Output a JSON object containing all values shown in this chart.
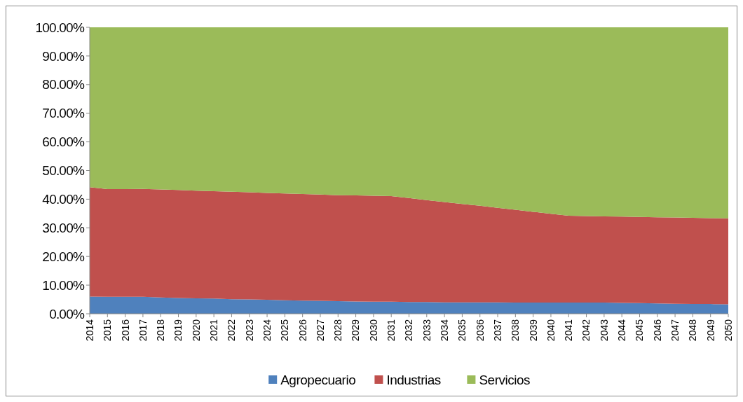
{
  "chart_data": {
    "type": "area",
    "stacked": true,
    "legend": "bottom",
    "categories": [
      "2014",
      "2015",
      "2016",
      "2017",
      "2018",
      "2019",
      "2020",
      "2021",
      "2022",
      "2023",
      "2024",
      "2025",
      "2026",
      "2027",
      "2028",
      "2029",
      "2030",
      "2031",
      "2032",
      "2033",
      "2034",
      "2035",
      "2036",
      "2037",
      "2038",
      "2039",
      "2040",
      "2041",
      "2042",
      "2043",
      "2044",
      "2045",
      "2046",
      "2047",
      "2048",
      "2049",
      "2050"
    ],
    "ylim": [
      0,
      100
    ],
    "yticks": [
      {
        "value": 0,
        "label": "0.00%"
      },
      {
        "value": 10,
        "label": "10.00%"
      },
      {
        "value": 20,
        "label": "20.00%"
      },
      {
        "value": 30,
        "label": "30.00%"
      },
      {
        "value": 40,
        "label": "40.00%"
      },
      {
        "value": 50,
        "label": "50.00%"
      },
      {
        "value": 60,
        "label": "60.00%"
      },
      {
        "value": 70,
        "label": "70.00%"
      },
      {
        "value": 80,
        "label": "80.00%"
      },
      {
        "value": 90,
        "label": "90.00%"
      },
      {
        "value": 100,
        "label": "100.00%"
      }
    ],
    "series": [
      {
        "name": "Agropecuario",
        "color": "#4f81bd",
        "values": [
          6.0,
          5.9,
          5.9,
          5.9,
          5.7,
          5.5,
          5.4,
          5.3,
          5.1,
          5.0,
          4.9,
          4.7,
          4.6,
          4.5,
          4.4,
          4.3,
          4.2,
          4.2,
          4.1,
          4.1,
          4.0,
          4.0,
          4.0,
          4.0,
          3.9,
          3.9,
          3.9,
          3.9,
          3.9,
          3.9,
          3.8,
          3.7,
          3.6,
          3.5,
          3.4,
          3.4,
          3.3
        ]
      },
      {
        "name": "Industrias",
        "color": "#c0504d",
        "values": [
          38.2,
          37.6,
          37.6,
          37.7,
          37.7,
          37.7,
          37.6,
          37.5,
          37.5,
          37.4,
          37.3,
          37.3,
          37.2,
          37.1,
          37.0,
          37.0,
          37.0,
          36.9,
          36.3,
          35.6,
          35.0,
          34.3,
          33.7,
          33.0,
          32.4,
          31.7,
          31.0,
          30.3,
          30.2,
          30.1,
          30.1,
          30.1,
          30.1,
          30.1,
          30.1,
          30.0,
          30.0
        ]
      },
      {
        "name": "Servicios",
        "color": "#9bbb59",
        "values": [
          55.8,
          56.5,
          56.5,
          56.4,
          56.6,
          56.8,
          57.0,
          57.2,
          57.4,
          57.6,
          57.8,
          58.0,
          58.2,
          58.4,
          58.6,
          58.7,
          58.8,
          58.9,
          59.6,
          60.3,
          61.0,
          61.7,
          62.3,
          63.0,
          63.7,
          64.4,
          65.1,
          65.8,
          65.9,
          66.0,
          66.1,
          66.2,
          66.3,
          66.4,
          66.5,
          66.6,
          66.7
        ]
      }
    ]
  }
}
